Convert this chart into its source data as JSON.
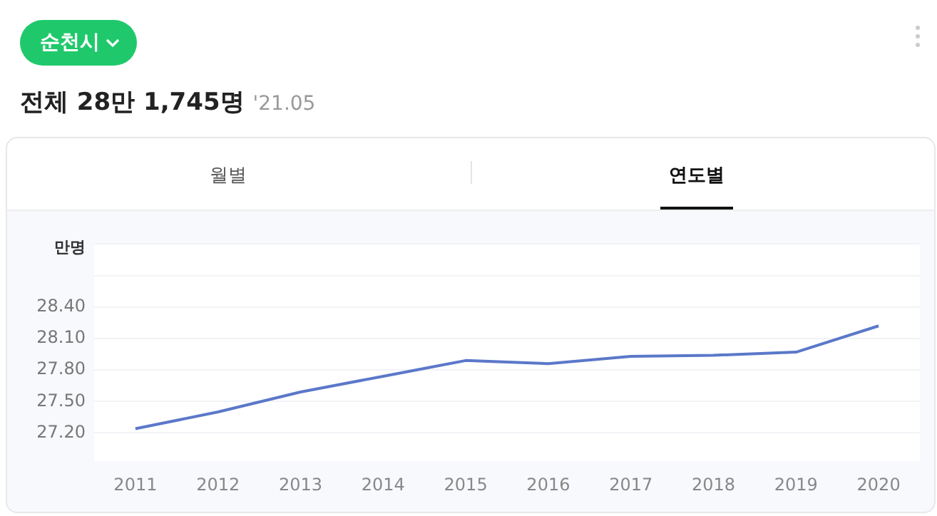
{
  "chart_data": {
    "type": "line",
    "title": "순천시",
    "subtitle": "전체 28만 1,745명",
    "ylabel": "만명",
    "annotations": [
      "'21.05",
      "월별",
      "연도별"
    ],
    "categories": [
      "2011",
      "2012",
      "2013",
      "2014",
      "2015",
      "2016",
      "2017",
      "2018",
      "2019",
      "2020"
    ],
    "series": [
      {
        "color": "#5b78c9",
        "values": [
          27.24,
          27.4,
          27.59,
          27.74,
          27.89,
          27.86,
          27.93,
          27.94,
          27.97,
          28.22
        ]
      }
    ],
    "ylim": [
      26.93,
      29.0
    ],
    "yticks": [
      {
        "value": 27.2,
        "label": "27.20"
      },
      {
        "value": 27.5,
        "label": "27.50"
      },
      {
        "value": 27.8,
        "label": "27.80"
      },
      {
        "value": 28.1,
        "label": "28.10"
      },
      {
        "value": 28.4,
        "label": "28.40"
      },
      {
        "value": 28.7,
        "label": null
      },
      {
        "value": 29.0,
        "label": null
      }
    ],
    "grid": "y",
    "legend": false,
    "marker": "none",
    "line_style": "solid"
  }
}
